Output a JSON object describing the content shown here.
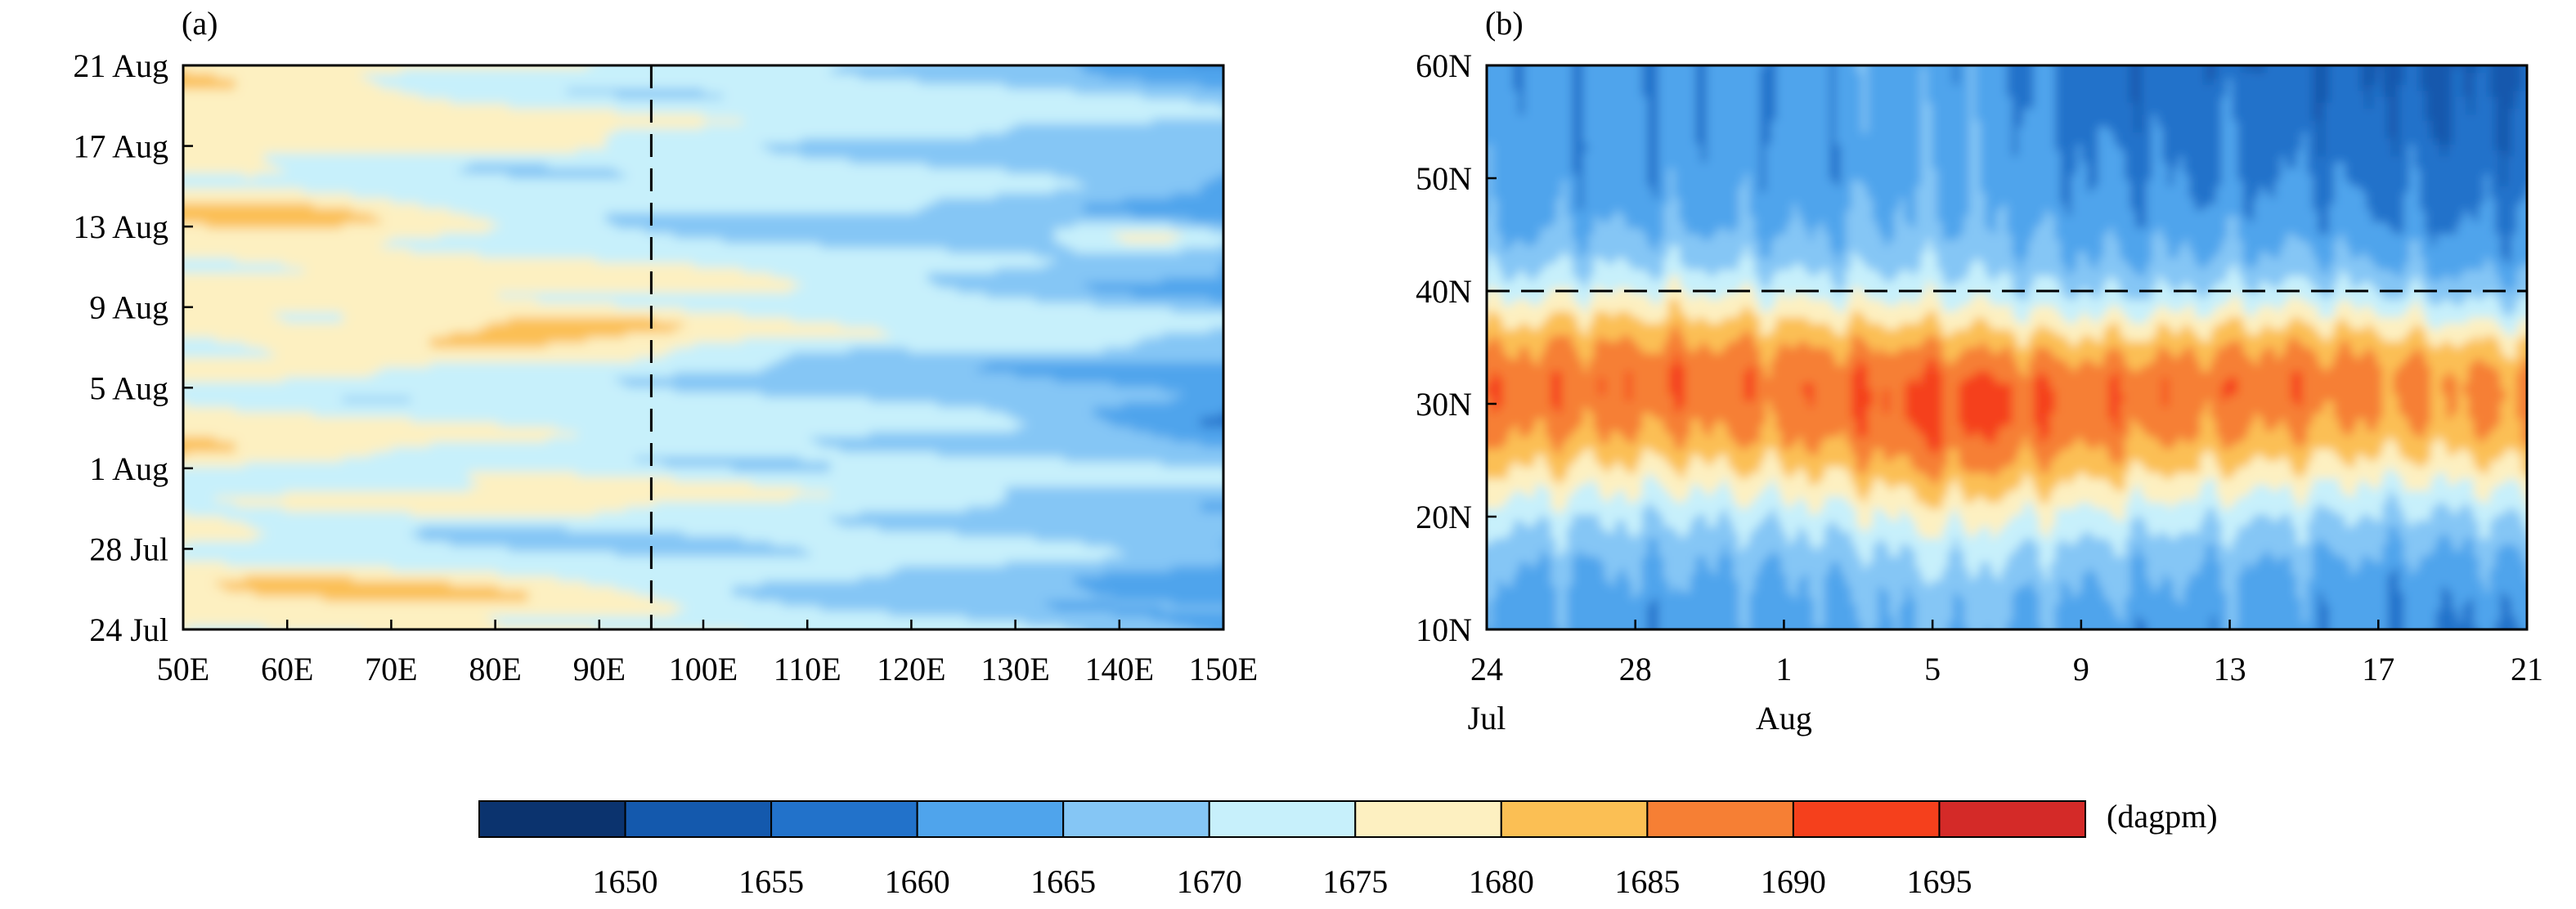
{
  "colorbar": {
    "levels": [
      1650,
      1655,
      1660,
      1665,
      1670,
      1675,
      1680,
      1685,
      1690,
      1695
    ],
    "colors": [
      "#0b336e",
      "#1459ad",
      "#2272ca",
      "#4fa4ec",
      "#85c6f5",
      "#c7f0fb",
      "#fdf0c1",
      "#fbbf54",
      "#f67f34",
      "#f5401c",
      "#d42a28"
    ],
    "unit": "(dagpm)"
  },
  "chart_data": [
    {
      "type": "heatmap",
      "panel_label": "(a)",
      "x_ticks": [
        "50E",
        "60E",
        "70E",
        "80E",
        "90E",
        "100E",
        "110E",
        "120E",
        "130E",
        "140E",
        "150E"
      ],
      "y_ticks": [
        "24 Jul",
        "28 Jul",
        "1 Aug",
        "5 Aug",
        "9 Aug",
        "13 Aug",
        "17 Aug",
        "21 Aug"
      ],
      "xlim": [
        50,
        150
      ],
      "ylim": [
        0,
        28
      ],
      "reference_line": {
        "orientation": "vertical",
        "value": 95,
        "style": "dashed"
      },
      "title": "",
      "xlabel": "",
      "ylabel": ""
    },
    {
      "type": "heatmap",
      "panel_label": "(b)",
      "x_ticks": [
        "24",
        "28",
        "1",
        "5",
        "9",
        "13",
        "17",
        "21"
      ],
      "x_month_labels": [
        {
          "label": "Jul",
          "under_tick": "24"
        },
        {
          "label": "Aug",
          "under_tick": "1"
        }
      ],
      "y_ticks": [
        "10N",
        "20N",
        "30N",
        "40N",
        "50N",
        "60N"
      ],
      "xlim": [
        0,
        28
      ],
      "ylim": [
        10,
        60
      ],
      "reference_line": {
        "orientation": "horizontal",
        "value": 40,
        "style": "dashed"
      },
      "title": "",
      "xlabel": "",
      "ylabel": ""
    }
  ]
}
